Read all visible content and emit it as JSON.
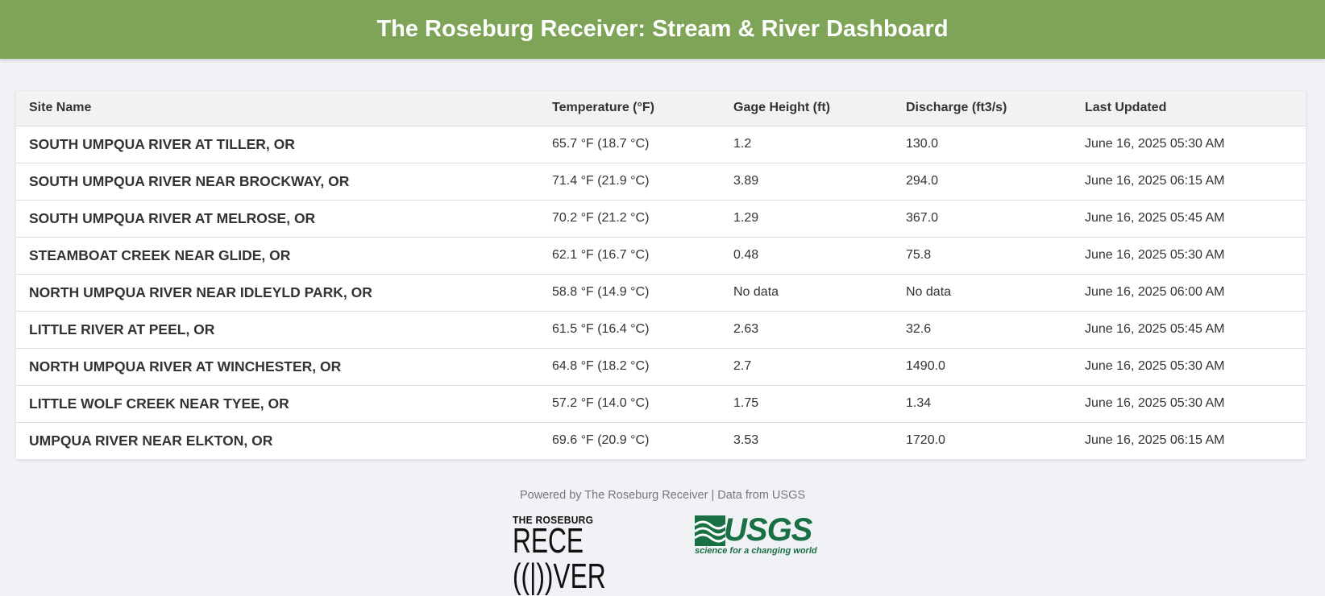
{
  "header": {
    "title": "The Roseburg Receiver: Stream & River Dashboard",
    "background_color": "#7ea557"
  },
  "table": {
    "columns": [
      "Site Name",
      "Temperature (°F)",
      "Gage Height (ft)",
      "Discharge (ft3/s)",
      "Last Updated"
    ],
    "rows": [
      {
        "site": "SOUTH UMPQUA RIVER AT TILLER, OR",
        "temperature": "65.7 °F (18.7 °C)",
        "gage_height": "1.2",
        "discharge": "130.0",
        "updated": "June 16, 2025 05:30 AM"
      },
      {
        "site": "SOUTH UMPQUA RIVER NEAR BROCKWAY, OR",
        "temperature": "71.4 °F (21.9 °C)",
        "gage_height": "3.89",
        "discharge": "294.0",
        "updated": "June 16, 2025 06:15 AM"
      },
      {
        "site": "SOUTH UMPQUA RIVER AT MELROSE, OR",
        "temperature": "70.2 °F (21.2 °C)",
        "gage_height": "1.29",
        "discharge": "367.0",
        "updated": "June 16, 2025 05:45 AM"
      },
      {
        "site": "STEAMBOAT CREEK NEAR GLIDE, OR",
        "temperature": "62.1 °F (16.7 °C)",
        "gage_height": "0.48",
        "discharge": "75.8",
        "updated": "June 16, 2025 05:30 AM"
      },
      {
        "site": "NORTH UMPQUA RIVER NEAR IDLEYLD PARK, OR",
        "temperature": "58.8 °F (14.9 °C)",
        "gage_height": "No data",
        "discharge": "No data",
        "updated": "June 16, 2025 06:00 AM"
      },
      {
        "site": "LITTLE RIVER AT PEEL, OR",
        "temperature": "61.5 °F (16.4 °C)",
        "gage_height": "2.63",
        "discharge": "32.6",
        "updated": "June 16, 2025 05:45 AM"
      },
      {
        "site": "NORTH UMPQUA RIVER AT WINCHESTER, OR",
        "temperature": "64.8 °F (18.2 °C)",
        "gage_height": "2.7",
        "discharge": "1490.0",
        "updated": "June 16, 2025 05:30 AM"
      },
      {
        "site": "LITTLE WOLF CREEK NEAR TYEE, OR",
        "temperature": "57.2 °F (14.0 °C)",
        "gage_height": "1.75",
        "discharge": "1.34",
        "updated": "June 16, 2025 05:30 AM"
      },
      {
        "site": "UMPQUA RIVER NEAR ELKTON, OR",
        "temperature": "69.6 °F (20.9 °C)",
        "gage_height": "3.53",
        "discharge": "1720.0",
        "updated": "June 16, 2025 06:15 AM"
      }
    ]
  },
  "footer": {
    "text": "Powered by The Roseburg Receiver | Data from USGS",
    "receiver_logo": {
      "small_text": "THE ROSEBURG",
      "large_text": "RECE(|)VER",
      "icon": "broadcast-antenna-icon"
    },
    "usgs_logo": {
      "wordmark": "USGS",
      "tagline": "science for a changing world",
      "color": "#1a7045",
      "icon": "usgs-wave-icon"
    }
  }
}
